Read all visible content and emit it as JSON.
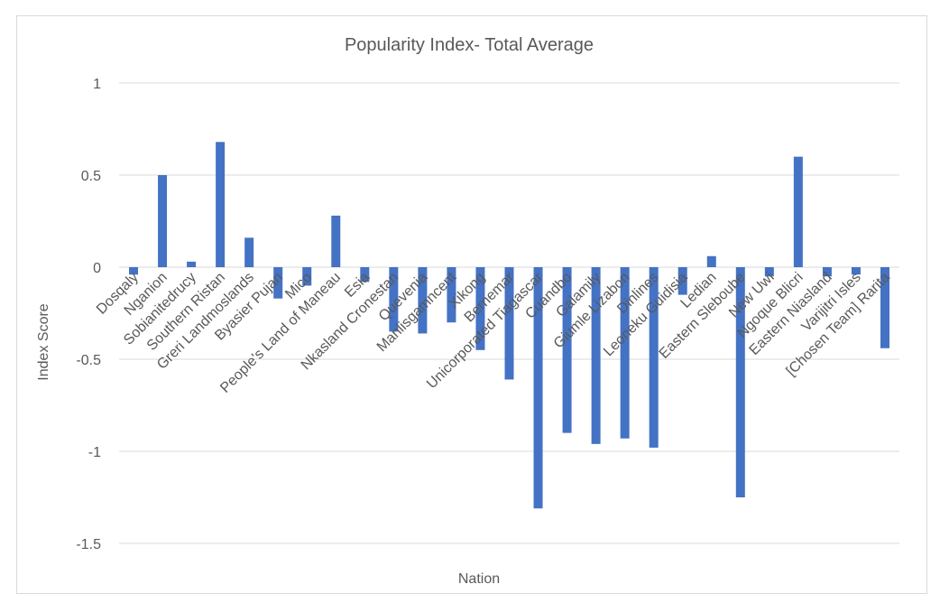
{
  "chart_data": {
    "type": "bar",
    "title": "Popularity Index- Total Average",
    "xlabel": "Nation",
    "ylabel": "Index Score",
    "ylim": [
      -1.5,
      1
    ],
    "yticks": [
      1,
      0.5,
      0,
      -0.5,
      -1,
      -1.5
    ],
    "ytick_labels": [
      "1",
      "0.5",
      "0",
      "-0.5",
      "-1",
      "-1.5"
    ],
    "grid": true,
    "bar_color": "#4472c4",
    "categories": [
      "Dosqaly",
      "Nganion",
      "Sobianitedrucy",
      "Southern Ristan",
      "Greri Landmoslands",
      "Byasier Pujan",
      "Mico",
      "People's Land of Maneau",
      "Esia",
      "Nkasland Cronestan",
      "Quevenia",
      "Manlisgamncent",
      "Xikong",
      "Bernemar",
      "Unicorporated Tiagascar",
      "Cuandbo",
      "Galamily",
      "Giumle Lizabon",
      "Dinlines",
      "Leoneku Guidisia",
      "Ledian",
      "Eastern Sleboube",
      "New Uwi",
      "Ngoque Blicri",
      "Eastern Niasland",
      "Varijitri Isles",
      "[Chosen Team] Rarita"
    ],
    "values": [
      -0.04,
      0.5,
      0.03,
      0.68,
      0.16,
      -0.17,
      -0.1,
      0.28,
      -0.08,
      -0.35,
      -0.36,
      -0.3,
      -0.45,
      -0.61,
      -1.31,
      -0.9,
      -0.96,
      -0.93,
      -0.98,
      -0.15,
      0.06,
      -1.25,
      -0.05,
      0.6,
      -0.05,
      -0.04,
      -0.44
    ]
  }
}
